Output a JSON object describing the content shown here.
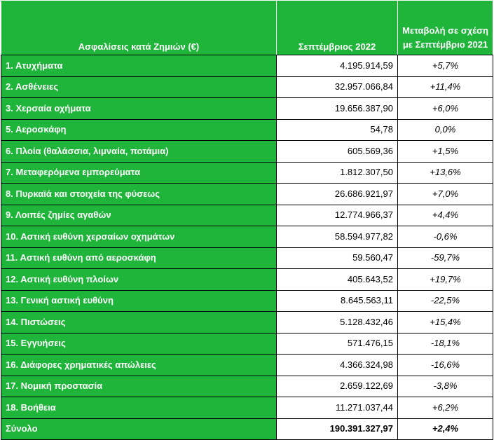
{
  "header": {
    "category": "Ασφαλίσεις κατά Ζημιών (€)",
    "period": "Σεπτέμβριος 2022",
    "change": "Μεταβολή σε σχέση με Σεπτέμβριο 2021"
  },
  "rows": [
    {
      "label": "1. Ατυχήματα",
      "value": "4.195.914,59",
      "change": "+5,7%"
    },
    {
      "label": "2. Ασθένειες",
      "value": "32.957.066,84",
      "change": "+11,4%"
    },
    {
      "label": "3. Χερσαία οχήματα",
      "value": "19.656.387,90",
      "change": "+6,0%"
    },
    {
      "label": "5. Αεροσκάφη",
      "value": "54,78",
      "change": "0,0%"
    },
    {
      "label": "6. Πλοία (θαλάσσια, λιμναία, ποτάμια)",
      "value": "605.569,36",
      "change": "+1,5%"
    },
    {
      "label": "7. Μεταφερόμενα εμπορεύματα",
      "value": "1.812.307,50",
      "change": "+13,6%"
    },
    {
      "label": "8. Πυρκαϊά και στοιχεία της φύσεως",
      "value": "26.686.921,97",
      "change": "+7,0%"
    },
    {
      "label": "9. Λοιπές ζημίες αγαθών",
      "value": "12.774.966,37",
      "change": "+4,4%"
    },
    {
      "label": "10. Αστική ευθύνη χερσαίων οχημάτων",
      "value": "58.594.977,82",
      "change": "-0,6%"
    },
    {
      "label": "11. Αστική ευθύνη από αεροσκάφη",
      "value": "59.560,47",
      "change": "-59,7%"
    },
    {
      "label": "12. Αστική ευθύνη πλοίων",
      "value": "405.643,52",
      "change": "+19,7%"
    },
    {
      "label": "13. Γενική αστική ευθύνη",
      "value": "8.645.563,11",
      "change": "-22,5%"
    },
    {
      "label": "14. Πιστώσεις",
      "value": "5.128.432,46",
      "change": "+15,4%"
    },
    {
      "label": "15. Εγγυήσεις",
      "value": "571.476,15",
      "change": "-18,1%"
    },
    {
      "label": "16. Διάφορες χρηματικές απώλειες",
      "value": "4.366.324,98",
      "change": "-16,6%"
    },
    {
      "label": "17. Νομική προστασία",
      "value": "2.659.122,69",
      "change": "-3,8%"
    },
    {
      "label": "18. Βοήθεια",
      "value": "11.271.037,44",
      "change": "+6,2%"
    }
  ],
  "total": {
    "label": "Σύνολο",
    "value": "190.391.327,97",
    "change": "+2,4%"
  },
  "colors": {
    "header_green": "#1eb53a",
    "border": "#000000"
  }
}
